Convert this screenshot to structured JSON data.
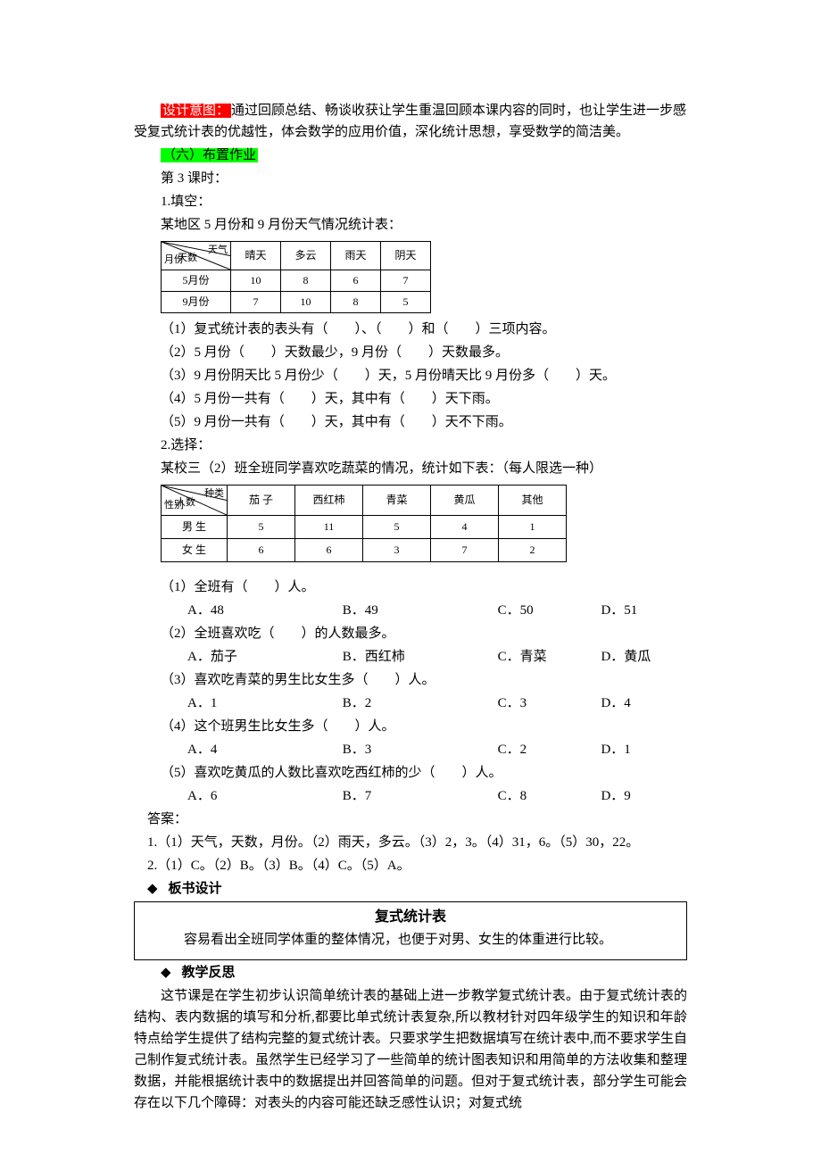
{
  "intro": {
    "label_design": "设计意图：",
    "design_text": "通过回顾总结、畅谈收获让学生重温回顾本课内容的同时，也让学生进一步感受复式统计表的优越性，体会数学的应用价值，深化统计思想，享受数学的简洁美。",
    "label_assign": "（六）布置作业",
    "period": "第 3 课时：",
    "q1_label": "1.填空：",
    "q1_intro": "某地区 5 月份和 9 月份天气情况统计表："
  },
  "table1": {
    "diag_top": "天气",
    "diag_mid": "天数",
    "diag_bot": "月份",
    "cols": [
      "晴天",
      "多云",
      "雨天",
      "阴天"
    ],
    "rows": [
      {
        "label": "5月份",
        "vals": [
          "10",
          "8",
          "6",
          "7"
        ]
      },
      {
        "label": "9月份",
        "vals": [
          "7",
          "10",
          "8",
          "5"
        ]
      }
    ]
  },
  "fills": {
    "f1": "（1）复式统计表的表头有（　　）、（　　）和（　　）三项内容。",
    "f2": "（2）5 月份（　　）天数最少，9 月份（　　）天数最多。",
    "f3": "（3）9 月份阴天比 5 月份少（　　）天，5 月份晴天比 9 月份多（　　）天。",
    "f4": "（4）5 月份一共有（　　）天，其中有（　　）天下雨。",
    "f5": "（5）9 月份一共有（　　）天，其中有（　　）天不下雨。"
  },
  "q2": {
    "label": "2.选择：",
    "intro": "某校三（2）班全班同学喜欢吃蔬菜的情况，统计如下表：（每人限选一种）"
  },
  "table2": {
    "diag_top": "种类",
    "diag_mid": "人数",
    "diag_bot": "性别",
    "cols": [
      "茄 子",
      "西红柿",
      "青菜",
      "黄瓜",
      "其他"
    ],
    "rows": [
      {
        "label": "男 生",
        "vals": [
          "5",
          "11",
          "5",
          "4",
          "1"
        ]
      },
      {
        "label": "女 生",
        "vals": [
          "6",
          "6",
          "3",
          "7",
          "2"
        ]
      }
    ]
  },
  "mcq": [
    {
      "q": "（1）全班有（　　）人。",
      "opts": [
        "A．48",
        "B．49",
        "C．50",
        "D．51"
      ]
    },
    {
      "q": "（2）全班喜欢吃（　　）的人数最多。",
      "opts": [
        "A．茄子",
        "B．西红柿",
        "C．青菜",
        "D．黄瓜"
      ]
    },
    {
      "q": "（3）喜欢吃青菜的男生比女生多（　　）人。",
      "opts": [
        "A．1",
        "B．2",
        "C．3",
        "D．4"
      ]
    },
    {
      "q": "（4）这个班男生比女生多（　　）人。",
      "opts": [
        "A．4",
        "B．3",
        "C．2",
        "D．1"
      ]
    },
    {
      "q": "（5）喜欢吃黄瓜的人数比喜欢吃西红柿的少（　　）人。",
      "opts": [
        "A．6",
        "B．7",
        "C．8",
        "D．9"
      ]
    }
  ],
  "answers": {
    "label": "答案：",
    "a1": "1.（1）天气，天数，月份。（2）雨天，多云。（3）2，3。（4）31，6。（5）30，22。",
    "a2": "2.（1）C。（2）B。（3）B。（4）C。（5）A。"
  },
  "board": {
    "hdr": "板书设计",
    "title": "复式统计表",
    "text": "容易看出全班同学体重的整体情况，也便于对男、女生的体重进行比较。"
  },
  "reflect": {
    "hdr": "教学反思",
    "text": "这节课是在学生初步认识简单统计表的基础上进一步教学复式统计表。由于复式统计表的结构、表内数据的填写和分析,都要比单式统计表复杂,所以教材针对四年级学生的知识和年龄特点给学生提供了结构完整的复式统计表。只要求学生把数据填写在统计表中,而不要求学生自己制作复式统计表。虽然学生已经学习了一些简单的统计图表知识和用简单的方法收集和整理数据，并能根据统计表中的数据提出并回答简单的问题。但对于复式统计表，部分学生可能会存在以下几个障碍：对表头的内容可能还缺乏感性认识；对复式统"
  },
  "diamond": "◆"
}
